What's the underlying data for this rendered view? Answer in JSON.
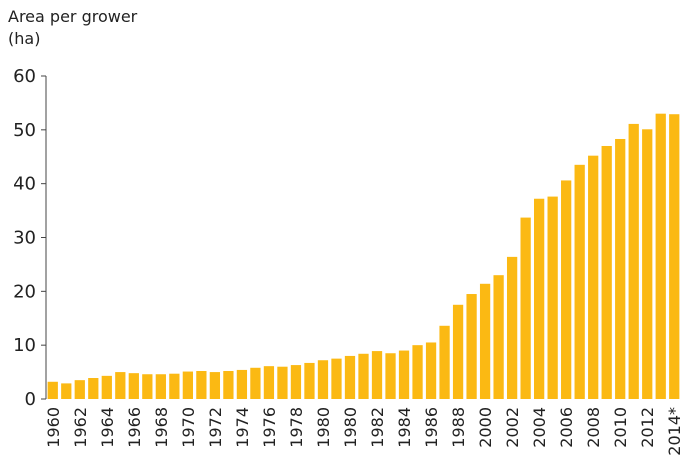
{
  "chart_data": {
    "type": "bar",
    "title": "Area per grower",
    "y_label": "(ha)",
    "categories": [
      "1960",
      null,
      "1962",
      null,
      "1964",
      null,
      "1966",
      null,
      "1968",
      null,
      "1970",
      null,
      "1972",
      null,
      "1974",
      null,
      "1976",
      null,
      "1978",
      null,
      "1980",
      null,
      "1980",
      null,
      "1982",
      null,
      "1984",
      null,
      "1986",
      null,
      "1988",
      null,
      "2000",
      null,
      "2002",
      null,
      "2004",
      null,
      "2006",
      null,
      "2008",
      null,
      "2010",
      null,
      "2012",
      null,
      "2014*"
    ],
    "values": [
      3.2,
      2.9,
      3.5,
      3.9,
      4.3,
      5.0,
      4.8,
      4.6,
      4.6,
      4.7,
      5.1,
      5.2,
      5.0,
      5.2,
      5.4,
      5.8,
      6.1,
      6.0,
      6.3,
      6.7,
      7.2,
      7.5,
      8.0,
      8.4,
      8.9,
      8.5,
      9.0,
      10.0,
      10.5,
      13.6,
      17.5,
      19.5,
      21.4,
      23.0,
      26.4,
      33.7,
      37.2,
      37.6,
      40.6,
      43.5,
      45.2,
      47.0,
      48.3,
      51.1,
      50.1,
      53.0,
      52.9
    ],
    "color": "#fbb913",
    "ylim": [
      0,
      60
    ],
    "yticks": [
      0,
      10,
      20,
      30,
      40,
      50,
      60
    ]
  }
}
